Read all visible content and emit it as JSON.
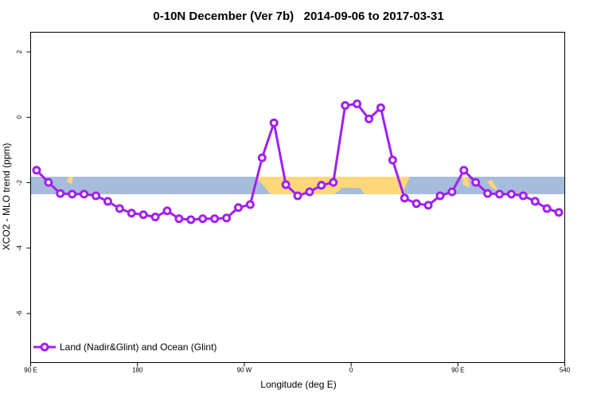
{
  "chart_data": {
    "type": "line",
    "title": "0-10N December (Ver 7b)   2014-09-06 to 2017-03-31",
    "x_label": "Longitude (deg E)",
    "y_label": "XCO2 - MLO trend (ppm)",
    "x": [
      95,
      105,
      115,
      125,
      135,
      145,
      155,
      165,
      175,
      185,
      195,
      205,
      215,
      225,
      235,
      245,
      255,
      265,
      275,
      285,
      295,
      305,
      315,
      325,
      335,
      345,
      355,
      365,
      375,
      385,
      395,
      405,
      415,
      425,
      435,
      445,
      455,
      465,
      475,
      485,
      495,
      505,
      515,
      525,
      535
    ],
    "series": [
      {
        "name": "Land (Nadir&Glint) and Ocean (Glint)",
        "color": "#a020f0",
        "values": [
          -1.62,
          -1.99,
          -2.33,
          -2.35,
          -2.35,
          -2.4,
          -2.57,
          -2.79,
          -2.93,
          -2.98,
          -3.05,
          -2.86,
          -3.1,
          -3.13,
          -3.1,
          -3.1,
          -3.08,
          -2.76,
          -2.67,
          -1.24,
          -0.17,
          -2.06,
          -2.4,
          -2.28,
          -2.08,
          -1.99,
          0.36,
          0.41,
          -0.05,
          0.29,
          -1.31,
          -2.47,
          -2.64,
          -2.69,
          -2.4,
          -2.28,
          -1.62,
          -1.99,
          -2.33,
          -2.35,
          -2.35,
          -2.4,
          -2.57,
          -2.79,
          -2.91
        ]
      }
    ],
    "xlim": [
      90,
      540
    ],
    "xticks": [
      {
        "value": 90,
        "label": "90 E"
      },
      180,
      {
        "value": 270,
        "label": "90 W"
      },
      {
        "value": 360,
        "label": "0"
      },
      {
        "value": 450,
        "label": "90 E"
      },
      540
    ],
    "ylim": [
      -7.5,
      2.6
    ],
    "yticks": [
      -6,
      -4,
      -2,
      0,
      2
    ],
    "legend": "bottom-left"
  }
}
